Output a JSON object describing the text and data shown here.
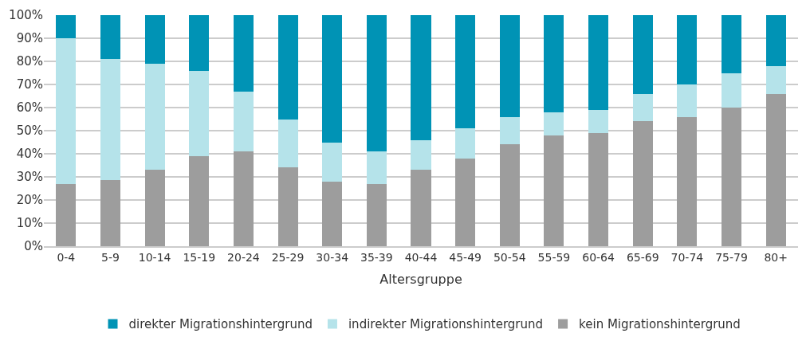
{
  "chart_data": {
    "type": "bar",
    "stacked": true,
    "xlabel": "Altersgruppe",
    "categories": [
      "0-4",
      "5-9",
      "10-14",
      "15-19",
      "20-24",
      "25-29",
      "30-34",
      "35-39",
      "40-44",
      "45-49",
      "50-54",
      "55-59",
      "60-64",
      "65-69",
      "70-74",
      "75-79",
      "80+"
    ],
    "series": [
      {
        "name": "kein Migrationshintergrund",
        "color": "#9d9d9d",
        "values": [
          27,
          28.5,
          33,
          39,
          41,
          34,
          28,
          27,
          33,
          38,
          44,
          48,
          49,
          54,
          56,
          60,
          66
        ]
      },
      {
        "name": "indirekter Migrationshintergrund",
        "color": "#b5e3ea",
        "values": [
          63,
          52.5,
          46,
          37,
          26,
          21,
          17,
          14,
          13,
          13,
          12,
          10,
          10,
          12,
          14,
          15,
          12
        ]
      },
      {
        "name": "direkter Migrationshintergrund",
        "color": "#0093b5",
        "values": [
          10,
          19,
          21,
          24,
          33,
          45,
          55,
          59,
          54,
          49,
          44,
          42,
          41,
          34,
          30,
          25,
          22
        ]
      }
    ],
    "ylim": [
      0,
      100
    ],
    "yticks": [
      {
        "value": 0,
        "label": "0%"
      },
      {
        "value": 10,
        "label": "10%"
      },
      {
        "value": 20,
        "label": "20%"
      },
      {
        "value": 30,
        "label": "30%"
      },
      {
        "value": 40,
        "label": "40%"
      },
      {
        "value": 50,
        "label": "50%"
      },
      {
        "value": 60,
        "label": "60%"
      },
      {
        "value": 70,
        "label": "70%"
      },
      {
        "value": 80,
        "label": "80%"
      },
      {
        "value": 90,
        "label": "90%"
      },
      {
        "value": 100,
        "label": "100%"
      }
    ],
    "grid": "y",
    "legend": "bottom"
  }
}
